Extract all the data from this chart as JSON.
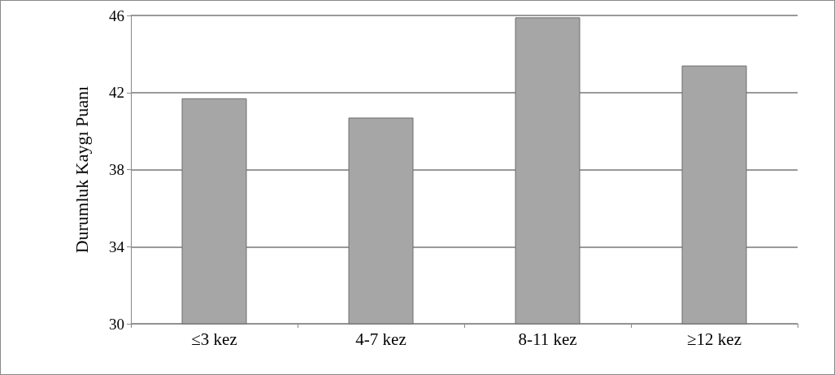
{
  "chart_data": {
    "type": "bar",
    "ylabel": "Durumluk Kaygı Puanı",
    "categories": [
      "≤3 kez",
      "4-7 kez",
      "8-11 kez",
      "≥12 kez"
    ],
    "values": [
      41.7,
      40.7,
      45.9,
      43.4
    ],
    "color": "#a6a6a6",
    "ylim": [
      30,
      46
    ],
    "yticks": [
      30,
      34,
      38,
      42,
      46
    ],
    "grid": "y"
  }
}
